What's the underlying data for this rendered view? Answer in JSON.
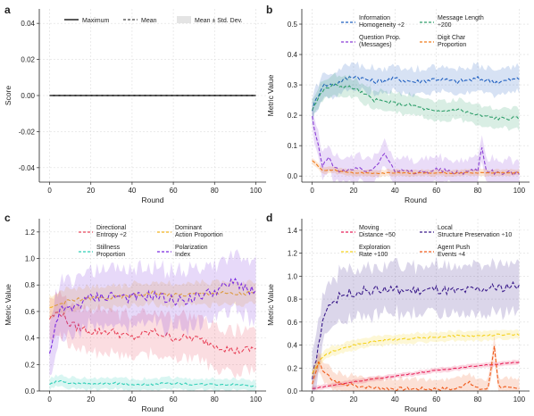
{
  "chart_data": [
    {
      "panel": "a",
      "type": "line",
      "xlabel": "Round",
      "ylabel": "Score",
      "xlim": [
        -5,
        105
      ],
      "ylim": [
        -0.048,
        0.048
      ],
      "xticks": [
        0,
        20,
        40,
        60,
        80,
        100
      ],
      "yticks": [
        -0.04,
        -0.02,
        0.0,
        0.02,
        0.04
      ],
      "ytick_labels": [
        "-0.04",
        "-0.02",
        "0.00",
        "0.02",
        "0.04"
      ],
      "grid": true,
      "legend": [
        "Maximum",
        "Mean",
        "Mean ± Std. Dev."
      ],
      "legend_position": "top",
      "series": [
        {
          "name": "Maximum",
          "color": "#000000",
          "style": "solid",
          "x": [
            0,
            100
          ],
          "y": [
            0,
            0
          ]
        },
        {
          "name": "Mean",
          "color": "#444444",
          "style": "dashed",
          "x": [
            0,
            100
          ],
          "y": [
            0,
            0
          ]
        }
      ]
    },
    {
      "panel": "b",
      "type": "line",
      "xlabel": "Round",
      "ylabel": "Metric Value",
      "xlim": [
        -5,
        105
      ],
      "ylim": [
        -0.02,
        0.55
      ],
      "xticks": [
        0,
        20,
        40,
        60,
        80,
        100
      ],
      "yticks": [
        0.0,
        0.1,
        0.2,
        0.3,
        0.4,
        0.5
      ],
      "ytick_labels": [
        "0.0",
        "0.1",
        "0.2",
        "0.3",
        "0.4",
        "0.5"
      ],
      "grid": true,
      "legend": [
        "Information Homogeneity ÷2",
        "Message Length ÷200",
        "Question Prop. (Messages)",
        "Digit Char Proportion"
      ],
      "legend_position": "top",
      "series": [
        {
          "name": "Information Homogeneity ÷2",
          "color": "#1f5fc0",
          "x": [
            0,
            5,
            10,
            20,
            30,
            40,
            50,
            60,
            70,
            80,
            90,
            100
          ],
          "y": [
            0.22,
            0.3,
            0.3,
            0.33,
            0.31,
            0.32,
            0.31,
            0.32,
            0.31,
            0.32,
            0.31,
            0.32
          ],
          "spread": 0.04
        },
        {
          "name": "Message Length ÷200",
          "color": "#2e9e6a",
          "x": [
            0,
            5,
            10,
            20,
            30,
            40,
            50,
            60,
            70,
            80,
            90,
            100
          ],
          "y": [
            0.22,
            0.28,
            0.3,
            0.29,
            0.25,
            0.24,
            0.23,
            0.21,
            0.22,
            0.2,
            0.19,
            0.19
          ],
          "spread": 0.03
        },
        {
          "name": "Question Prop. (Messages)",
          "color": "#8b3fd6",
          "x": [
            0,
            1,
            3,
            5,
            8,
            12,
            20,
            30,
            35,
            40,
            50,
            60,
            70,
            80,
            82,
            84,
            90,
            100
          ],
          "y": [
            0.2,
            0.15,
            0.1,
            0.03,
            0.06,
            0.02,
            0.02,
            0.02,
            0.08,
            0.02,
            0.01,
            0.02,
            0.01,
            0.02,
            0.1,
            0.02,
            0.01,
            0.01
          ],
          "spread": 0.04
        },
        {
          "name": "Digit Char Proportion",
          "color": "#f07a1a",
          "x": [
            0,
            5,
            10,
            20,
            30,
            40,
            50,
            60,
            70,
            80,
            90,
            100
          ],
          "y": [
            0.05,
            0.02,
            0.02,
            0.01,
            0.01,
            0.01,
            0.01,
            0.01,
            0.01,
            0.01,
            0.01,
            0.01
          ],
          "spread": 0.01
        }
      ]
    },
    {
      "panel": "c",
      "type": "line",
      "xlabel": "Round",
      "ylabel": "Metric Value",
      "xlim": [
        -5,
        105
      ],
      "ylim": [
        0.0,
        1.3
      ],
      "xticks": [
        0,
        20,
        40,
        60,
        80,
        100
      ],
      "yticks": [
        0.0,
        0.2,
        0.4,
        0.6,
        0.8,
        1.0,
        1.2
      ],
      "ytick_labels": [
        "0.0",
        "0.2",
        "0.4",
        "0.6",
        "0.8",
        "1.0",
        "1.2"
      ],
      "grid": true,
      "legend": [
        "Directional Entropy ÷2",
        "Dominant Action Proportion",
        "Stillness Proportion",
        "Polarization Index"
      ],
      "legend_position": "top",
      "series": [
        {
          "name": "Directional Entropy ÷2",
          "color": "#e8435a",
          "x": [
            0,
            5,
            10,
            20,
            30,
            40,
            50,
            60,
            70,
            80,
            90,
            100
          ],
          "y": [
            0.55,
            0.6,
            0.5,
            0.45,
            0.45,
            0.4,
            0.45,
            0.4,
            0.4,
            0.35,
            0.3,
            0.32
          ],
          "spread": 0.15
        },
        {
          "name": "Dominant Action Proportion",
          "color": "#f2b21c",
          "x": [
            0,
            5,
            10,
            20,
            30,
            40,
            50,
            60,
            70,
            80,
            90,
            100
          ],
          "y": [
            0.62,
            0.66,
            0.68,
            0.7,
            0.7,
            0.72,
            0.74,
            0.72,
            0.73,
            0.74,
            0.73,
            0.74
          ],
          "spread": 0.08
        },
        {
          "name": "Stillness Proportion",
          "color": "#2ecfb6",
          "x": [
            0,
            5,
            10,
            20,
            30,
            40,
            50,
            60,
            70,
            80,
            90,
            100
          ],
          "y": [
            0.05,
            0.08,
            0.06,
            0.05,
            0.06,
            0.05,
            0.05,
            0.06,
            0.05,
            0.05,
            0.05,
            0.04
          ],
          "spread": 0.04
        },
        {
          "name": "Polarization Index",
          "color": "#7a2ae0",
          "x": [
            0,
            5,
            10,
            20,
            30,
            40,
            50,
            60,
            70,
            80,
            90,
            95,
            100
          ],
          "y": [
            0.3,
            0.6,
            0.62,
            0.7,
            0.72,
            0.7,
            0.72,
            0.68,
            0.7,
            0.75,
            0.82,
            0.78,
            0.75
          ],
          "spread": 0.2
        }
      ]
    },
    {
      "panel": "d",
      "type": "line",
      "xlabel": "Round",
      "ylabel": "Metric Value",
      "xlim": [
        -5,
        105
      ],
      "ylim": [
        0.0,
        1.5
      ],
      "xticks": [
        0,
        20,
        40,
        60,
        80,
        100
      ],
      "yticks": [
        0.0,
        0.2,
        0.4,
        0.6,
        0.8,
        1.0,
        1.2,
        1.4
      ],
      "ytick_labels": [
        "0.0",
        "0.2",
        "0.4",
        "0.6",
        "0.8",
        "1.0",
        "1.2",
        "1.4"
      ],
      "grid": true,
      "legend": [
        "Moving Distance ÷50",
        "Local Structure Preservation ÷10",
        "Exploration Rate ÷100",
        "Agent Push Events ÷4"
      ],
      "legend_position": "top",
      "series": [
        {
          "name": "Moving Distance ÷50",
          "color": "#e8205a",
          "x": [
            0,
            10,
            20,
            40,
            60,
            80,
            100
          ],
          "y": [
            0.02,
            0.05,
            0.08,
            0.13,
            0.18,
            0.22,
            0.25
          ],
          "spread": 0.02
        },
        {
          "name": "Local Structure Preservation ÷10",
          "color": "#3a1a8a",
          "x": [
            0,
            3,
            6,
            10,
            15,
            20,
            30,
            40,
            50,
            60,
            70,
            80,
            90,
            100
          ],
          "y": [
            0.1,
            0.4,
            0.7,
            0.78,
            0.84,
            0.86,
            0.88,
            0.88,
            0.87,
            0.88,
            0.86,
            0.88,
            0.9,
            0.92
          ],
          "spread": 0.2
        },
        {
          "name": "Exploration Rate ÷100",
          "color": "#f5d21c",
          "x": [
            0,
            5,
            10,
            20,
            30,
            40,
            50,
            60,
            70,
            80,
            90,
            100
          ],
          "y": [
            0.15,
            0.3,
            0.35,
            0.4,
            0.43,
            0.45,
            0.46,
            0.47,
            0.48,
            0.48,
            0.49,
            0.49
          ],
          "spread": 0.04
        },
        {
          "name": "Agent Push Events ÷4",
          "color": "#f05a1a",
          "x": [
            0,
            3,
            6,
            10,
            15,
            20,
            30,
            40,
            50,
            60,
            70,
            75,
            80,
            85,
            88,
            90,
            95,
            100
          ],
          "y": [
            0.05,
            0.25,
            0.15,
            0.1,
            0.05,
            0.05,
            0.03,
            0.02,
            0.02,
            0.02,
            0.02,
            0.08,
            0.02,
            0.02,
            0.4,
            0.05,
            0.02,
            0.02
          ],
          "spread": 0.08
        }
      ]
    }
  ]
}
